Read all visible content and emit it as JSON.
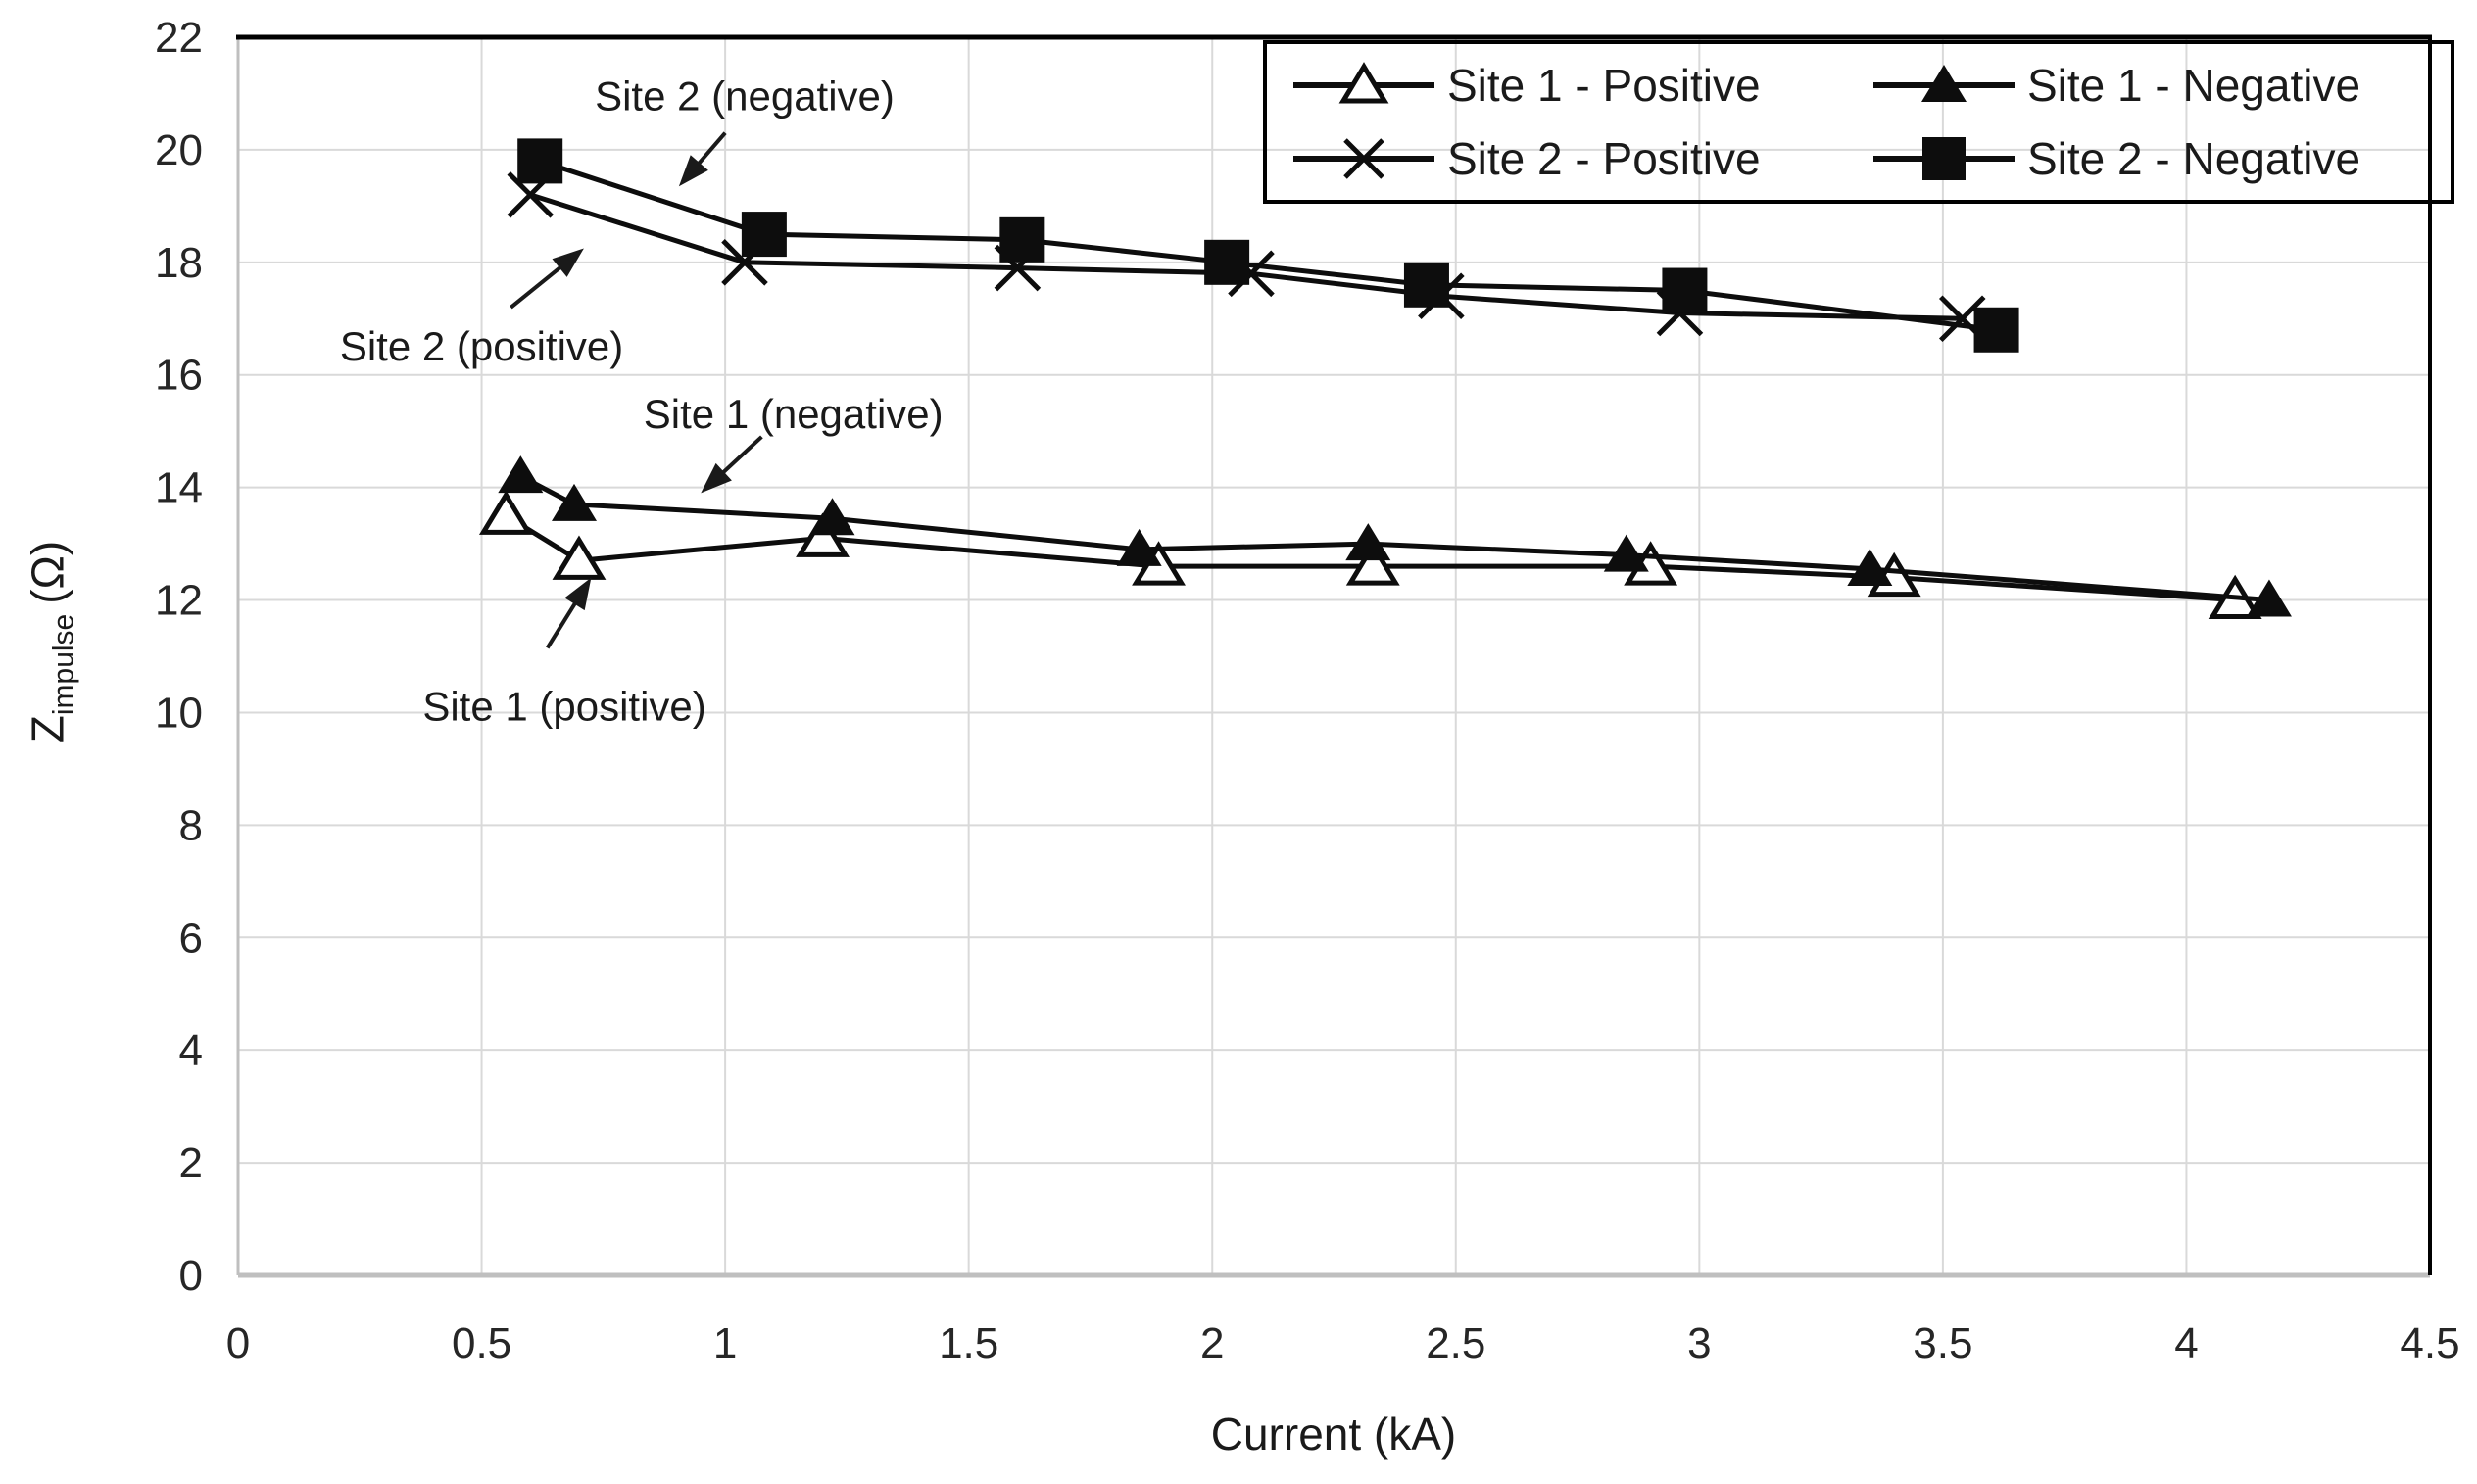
{
  "page": {
    "background": "#ffffff"
  },
  "colors": {
    "series": "#0d0d0d",
    "grid": "#d9d9d9",
    "axis_gray": "#bfbfbf",
    "border_black": "#000000",
    "text": "#262626",
    "marker_fill_open": "#ffffff"
  },
  "axes": {
    "x_title": "Current (kA)",
    "y_title": {
      "main": "Z",
      "sub": "impulse",
      "unit": "(Ω)"
    }
  },
  "chart_data": {
    "type": "line",
    "title": "",
    "xlabel": "Current (kA)",
    "ylabel": "Z_impulse (Ω)",
    "xlim": [
      0,
      4.5
    ],
    "ylim": [
      0,
      22
    ],
    "x_ticks": [
      0,
      0.5,
      1,
      1.5,
      2,
      2.5,
      3,
      3.5,
      4,
      4.5
    ],
    "x_tick_labels": [
      "0",
      "0.5",
      "1",
      "1.5",
      "2",
      "2.5",
      "3",
      "3.5",
      "4",
      "4.5"
    ],
    "y_ticks": [
      0,
      2,
      4,
      6,
      8,
      10,
      12,
      14,
      16,
      18,
      20,
      22
    ],
    "y_tick_labels": [
      "0",
      "2",
      "4",
      "6",
      "8",
      "10",
      "12",
      "14",
      "16",
      "18",
      "20",
      "22"
    ],
    "grid": true,
    "legend_position": "top-right",
    "series": [
      {
        "name": "Site 1 - Positive",
        "marker": "triangle-open",
        "points": [
          [
            0.55,
            13.5
          ],
          [
            0.7,
            12.7
          ],
          [
            1.2,
            13.1
          ],
          [
            1.89,
            12.6
          ],
          [
            2.33,
            12.6
          ],
          [
            2.9,
            12.6
          ],
          [
            3.4,
            12.4
          ],
          [
            4.1,
            12.0
          ]
        ]
      },
      {
        "name": "Site 1 - Negative",
        "marker": "triangle-filled",
        "points": [
          [
            0.58,
            14.2
          ],
          [
            0.69,
            13.7
          ],
          [
            1.22,
            13.45
          ],
          [
            1.85,
            12.9
          ],
          [
            2.32,
            13.0
          ],
          [
            2.85,
            12.8
          ],
          [
            3.35,
            12.55
          ],
          [
            4.17,
            12.0
          ]
        ]
      },
      {
        "name": "Site 2 - Positive",
        "marker": "x",
        "points": [
          [
            0.6,
            19.2
          ],
          [
            1.04,
            18.0
          ],
          [
            1.6,
            17.9
          ],
          [
            2.08,
            17.8
          ],
          [
            2.47,
            17.4
          ],
          [
            2.96,
            17.1
          ],
          [
            3.54,
            17.0
          ]
        ]
      },
      {
        "name": "Site 2 - Negative",
        "marker": "square-filled",
        "points": [
          [
            0.62,
            19.8
          ],
          [
            1.08,
            18.5
          ],
          [
            1.61,
            18.4
          ],
          [
            2.03,
            18.0
          ],
          [
            2.44,
            17.6
          ],
          [
            2.97,
            17.5
          ],
          [
            3.61,
            16.8
          ]
        ]
      }
    ],
    "annotations": [
      {
        "text": "Site 2 (negative)",
        "text_at": [
          1.04,
          20.95
        ],
        "arrow_from": [
          1.0,
          20.3
        ],
        "arrow_to": [
          0.905,
          19.35
        ]
      },
      {
        "text": "Site 2 (positive)",
        "text_at": [
          0.5,
          16.5
        ],
        "arrow_from": [
          0.56,
          17.2
        ],
        "arrow_to": [
          0.71,
          18.25
        ]
      },
      {
        "text": "Site 1 (negative)",
        "text_at": [
          1.14,
          15.3
        ],
        "arrow_from": [
          1.075,
          14.9
        ],
        "arrow_to": [
          0.95,
          13.9
        ]
      },
      {
        "text": "Site 1 (positive)",
        "text_at": [
          0.67,
          10.1
        ],
        "arrow_from": [
          0.635,
          11.15
        ],
        "arrow_to": [
          0.725,
          12.4
        ]
      }
    ]
  }
}
